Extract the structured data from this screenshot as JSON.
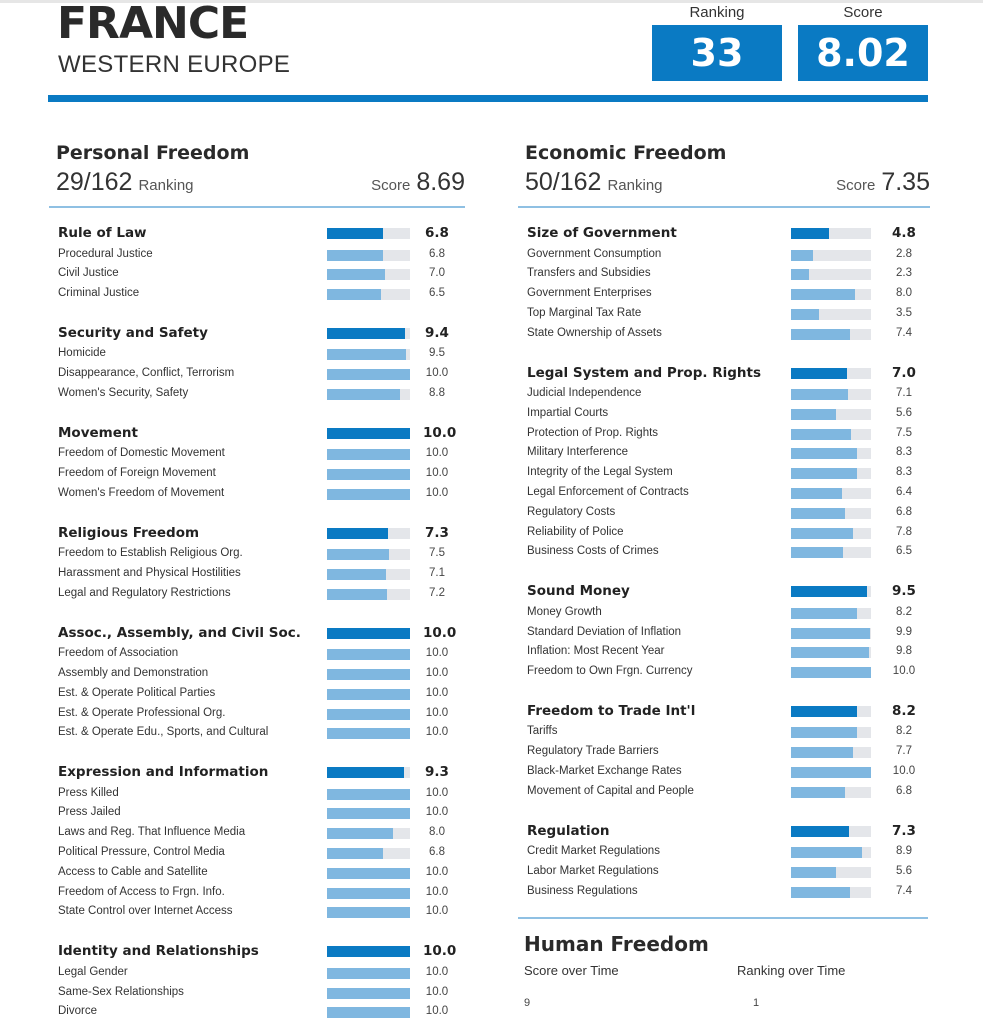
{
  "country": "FRANCE",
  "region": "WESTERN EUROPE",
  "header": {
    "ranking_label": "Ranking",
    "ranking_value": "33",
    "score_label": "Score",
    "score_value": "8.02"
  },
  "colors": {
    "accent": "#0a7ac3",
    "subbar": "#7fb7e0",
    "track": "#e4e6ea"
  },
  "personal": {
    "title": "Personal Freedom",
    "rank": "29/162",
    "rank_label": "Ranking",
    "score_label": "Score",
    "score": "8.69",
    "categories": [
      {
        "name": "Rule of Law",
        "value": "6.8",
        "items": [
          {
            "name": "Procedural Justice",
            "value": "6.8"
          },
          {
            "name": "Civil Justice",
            "value": "7.0"
          },
          {
            "name": "Criminal Justice",
            "value": "6.5"
          }
        ]
      },
      {
        "name": "Security and Safety",
        "value": "9.4",
        "items": [
          {
            "name": "Homicide",
            "value": "9.5"
          },
          {
            "name": "Disappearance, Conflict, Terrorism",
            "value": "10.0"
          },
          {
            "name": "Women's Security, Safety",
            "value": "8.8"
          }
        ]
      },
      {
        "name": "Movement",
        "value": "10.0",
        "items": [
          {
            "name": "Freedom of Domestic Movement",
            "value": "10.0"
          },
          {
            "name": "Freedom of Foreign Movement",
            "value": "10.0"
          },
          {
            "name": "Women's Freedom of Movement",
            "value": "10.0"
          }
        ]
      },
      {
        "name": "Religious Freedom",
        "value": "7.3",
        "items": [
          {
            "name": "Freedom to Establish Religious Org.",
            "value": "7.5"
          },
          {
            "name": "Harassment and Physical Hostilities",
            "value": "7.1"
          },
          {
            "name": "Legal and Regulatory Restrictions",
            "value": "7.2"
          }
        ]
      },
      {
        "name": "Assoc., Assembly, and Civil Soc.",
        "value": "10.0",
        "items": [
          {
            "name": "Freedom of Association",
            "value": "10.0"
          },
          {
            "name": "Assembly and Demonstration",
            "value": "10.0"
          },
          {
            "name": "Est. & Operate Political Parties",
            "value": "10.0"
          },
          {
            "name": "Est. & Operate Professional Org.",
            "value": "10.0"
          },
          {
            "name": "Est. & Operate Edu., Sports, and Cultural",
            "value": "10.0"
          }
        ]
      },
      {
        "name": "Expression and Information",
        "value": "9.3",
        "items": [
          {
            "name": "Press Killed",
            "value": "10.0"
          },
          {
            "name": "Press Jailed",
            "value": "10.0"
          },
          {
            "name": "Laws and Reg. That Influence Media",
            "value": "8.0"
          },
          {
            "name": "Political Pressure, Control Media",
            "value": "6.8"
          },
          {
            "name": "Access to Cable and Satellite",
            "value": "10.0"
          },
          {
            "name": "Freedom of Access to Frgn. Info.",
            "value": "10.0"
          },
          {
            "name": "State Control over Internet Access",
            "value": "10.0"
          }
        ]
      },
      {
        "name": "Identity and Relationships",
        "value": "10.0",
        "items": [
          {
            "name": "Legal Gender",
            "value": "10.0"
          },
          {
            "name": "Same-Sex Relationships",
            "value": "10.0"
          },
          {
            "name": "Divorce",
            "value": "10.0"
          }
        ]
      }
    ]
  },
  "economic": {
    "title": "Economic Freedom",
    "rank": "50/162",
    "rank_label": "Ranking",
    "score_label": "Score",
    "score": "7.35",
    "categories": [
      {
        "name": "Size of Government",
        "value": "4.8",
        "items": [
          {
            "name": "Government Consumption",
            "value": "2.8"
          },
          {
            "name": "Transfers and Subsidies",
            "value": "2.3"
          },
          {
            "name": "Government Enterprises",
            "value": "8.0"
          },
          {
            "name": "Top Marginal Tax Rate",
            "value": "3.5"
          },
          {
            "name": "State Ownership of Assets",
            "value": "7.4"
          }
        ]
      },
      {
        "name": "Legal System and Prop. Rights",
        "value": "7.0",
        "items": [
          {
            "name": "Judicial Independence",
            "value": "7.1"
          },
          {
            "name": "Impartial Courts",
            "value": "5.6"
          },
          {
            "name": "Protection of Prop. Rights",
            "value": "7.5"
          },
          {
            "name": "Military Interference",
            "value": "8.3"
          },
          {
            "name": "Integrity of the Legal System",
            "value": "8.3"
          },
          {
            "name": "Legal Enforcement of Contracts",
            "value": "6.4"
          },
          {
            "name": "Regulatory Costs",
            "value": "6.8"
          },
          {
            "name": "Reliability of Police",
            "value": "7.8"
          },
          {
            "name": "Business Costs of Crimes",
            "value": "6.5"
          }
        ]
      },
      {
        "name": "Sound Money",
        "value": "9.5",
        "items": [
          {
            "name": "Money Growth",
            "value": "8.2"
          },
          {
            "name": "Standard Deviation of Inflation",
            "value": "9.9"
          },
          {
            "name": "Inflation: Most Recent Year",
            "value": "9.8"
          },
          {
            "name": "Freedom to Own Frgn. Currency",
            "value": "10.0"
          }
        ]
      },
      {
        "name": "Freedom to Trade Int'l",
        "value": "8.2",
        "items": [
          {
            "name": "Tariffs",
            "value": "8.2"
          },
          {
            "name": "Regulatory Trade Barriers",
            "value": "7.7"
          },
          {
            "name": "Black-Market Exchange Rates",
            "value": "10.0"
          },
          {
            "name": "Movement of Capital and People",
            "value": "6.8"
          }
        ]
      },
      {
        "name": "Regulation",
        "value": "7.3",
        "items": [
          {
            "name": "Credit Market Regulations",
            "value": "8.9"
          },
          {
            "name": "Labor Market Regulations",
            "value": "5.6"
          },
          {
            "name": "Business Regulations",
            "value": "7.4"
          }
        ]
      }
    ]
  },
  "human": {
    "title": "Human Freedom",
    "score_over_time": "Score over Time",
    "ranking_over_time": "Ranking over Time",
    "score_tick": "9",
    "ranking_tick": "1"
  }
}
